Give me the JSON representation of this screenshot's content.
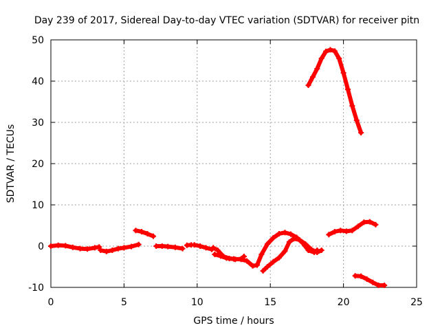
{
  "chart_data": {
    "type": "scatter",
    "title": "Day 239 of 2017, Sidereal Day-to-day VTEC variation (SDTVAR) for receiver pitn",
    "xlabel": "GPS time / hours",
    "ylabel": "SDTVAR / TECUs",
    "xlim": [
      0,
      25
    ],
    "ylim": [
      -10,
      50
    ],
    "x_ticks": [
      "0",
      "5",
      "10",
      "15",
      "20",
      "25"
    ],
    "y_ticks": [
      "-10",
      "0",
      "10",
      "20",
      "30",
      "40",
      "50"
    ],
    "grid": true,
    "marker": "plus",
    "series_color": "#ff0000",
    "series": [
      {
        "name": "seg1",
        "x": [
          0.0,
          0.5,
          1.0,
          1.5,
          2.0,
          2.5,
          3.0,
          3.3
        ],
        "y": [
          0.0,
          0.2,
          0.1,
          -0.3,
          -0.6,
          -0.7,
          -0.4,
          -0.2
        ]
      },
      {
        "name": "seg2",
        "x": [
          3.4,
          3.8,
          4.2,
          4.6,
          5.0,
          5.5,
          6.0
        ],
        "y": [
          -1.0,
          -1.3,
          -1.0,
          -0.6,
          -0.4,
          -0.1,
          0.4
        ]
      },
      {
        "name": "seg3",
        "x": [
          5.8,
          6.2,
          6.6,
          7.0
        ],
        "y": [
          3.8,
          3.5,
          3.0,
          2.4
        ]
      },
      {
        "name": "seg4",
        "x": [
          7.2,
          7.6,
          8.0,
          8.5,
          9.0
        ],
        "y": [
          0.0,
          0.0,
          -0.1,
          -0.3,
          -0.6
        ]
      },
      {
        "name": "seg5",
        "x": [
          9.3,
          9.6
        ],
        "y": [
          0.2,
          0.3
        ]
      },
      {
        "name": "seg6",
        "x": [
          9.8,
          10.2,
          10.6,
          11.0
        ],
        "y": [
          0.3,
          0.0,
          -0.4,
          -0.8
        ]
      },
      {
        "name": "seg7",
        "x": [
          11.1,
          11.4,
          11.8,
          12.2,
          12.6,
          13.0,
          13.2
        ],
        "y": [
          -0.4,
          -1.0,
          -2.5,
          -3.0,
          -3.2,
          -3.1,
          -2.5
        ]
      },
      {
        "name": "seg8",
        "x": [
          11.2,
          11.6,
          12.0,
          12.5,
          13.0,
          13.4,
          13.8,
          14.1,
          14.4,
          14.8,
          15.2,
          15.6,
          16.0,
          16.4,
          16.8,
          17.2,
          17.6,
          18.0,
          18.2
        ],
        "y": [
          -2.0,
          -2.4,
          -2.9,
          -3.1,
          -3.2,
          -3.6,
          -4.8,
          -4.6,
          -2.0,
          0.5,
          2.0,
          3.0,
          3.3,
          2.9,
          2.1,
          0.8,
          -1.0,
          -1.5,
          -1.0
        ]
      },
      {
        "name": "seg9",
        "x": [
          14.5,
          14.8,
          15.2,
          15.6,
          16.0,
          16.3,
          16.6,
          17.0,
          17.4,
          17.8,
          18.2,
          18.5
        ],
        "y": [
          -6.0,
          -5.0,
          -3.8,
          -2.8,
          -1.2,
          1.0,
          1.8,
          1.5,
          0.5,
          -0.8,
          -1.5,
          -1.0
        ]
      },
      {
        "name": "seg10",
        "x": [
          19.0,
          19.4,
          19.8,
          20.2,
          20.6,
          21.0,
          21.4,
          21.8,
          22.2
        ],
        "y": [
          2.8,
          3.5,
          3.8,
          3.6,
          3.8,
          4.8,
          5.8,
          5.9,
          5.2
        ]
      },
      {
        "name": "seg11",
        "x": [
          20.8,
          21.2,
          21.6,
          22.0,
          22.4,
          22.8
        ],
        "y": [
          -7.2,
          -7.3,
          -8.0,
          -8.8,
          -9.5,
          -9.5
        ]
      },
      {
        "name": "seg12",
        "x": [
          17.6,
          17.9,
          18.2,
          18.5,
          18.8,
          19.1,
          19.4,
          19.7,
          20.0,
          20.3,
          20.6,
          20.9,
          21.2
        ],
        "y": [
          39.0,
          41.0,
          43.0,
          45.5,
          47.2,
          47.6,
          47.3,
          45.5,
          42.0,
          38.0,
          34.0,
          30.5,
          27.5
        ]
      }
    ]
  }
}
